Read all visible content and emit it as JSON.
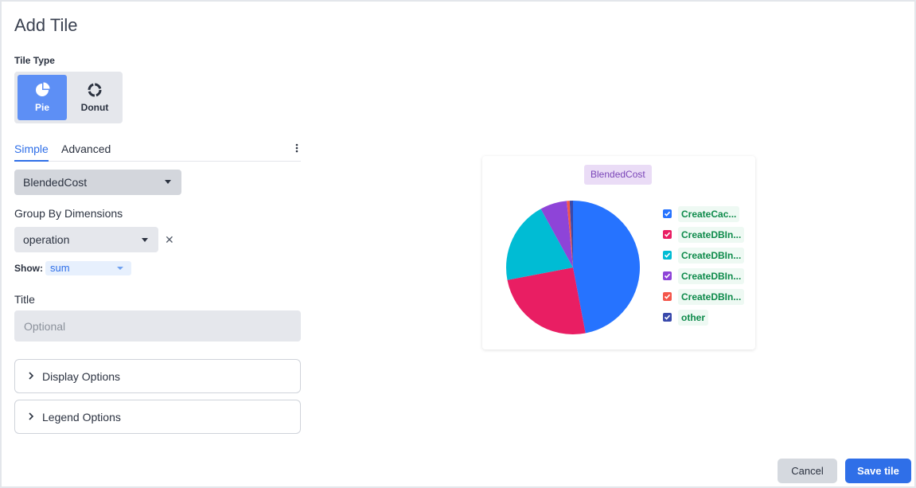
{
  "dialog": {
    "title": "Add Tile"
  },
  "tile_type": {
    "label": "Tile Type",
    "options": [
      {
        "label": "Pie",
        "icon": "pie-chart-icon",
        "selected": true
      },
      {
        "label": "Donut",
        "icon": "donut-chart-icon",
        "selected": false
      }
    ]
  },
  "tabs": [
    {
      "label": "Simple",
      "active": true
    },
    {
      "label": "Advanced",
      "active": false
    }
  ],
  "metric": {
    "value": "BlendedCost"
  },
  "group_by": {
    "label": "Group By Dimensions",
    "value": "operation"
  },
  "show": {
    "label": "Show:",
    "value": "sum"
  },
  "title_field": {
    "label": "Title",
    "placeholder": "Optional",
    "value": ""
  },
  "sections": [
    {
      "label": "Display Options"
    },
    {
      "label": "Legend Options"
    }
  ],
  "buttons": {
    "cancel": "Cancel",
    "save": "Save tile"
  },
  "colors": {
    "accent": "#2f6fe8",
    "active_tile": "#5d8ff5"
  },
  "chart_data": {
    "type": "pie",
    "title": "BlendedCost",
    "legend_position": "right",
    "slices": [
      {
        "label": "CreateCac...",
        "value": 47,
        "color": "#2673ff",
        "checked": true
      },
      {
        "label": "CreateDBIn...",
        "value": 25,
        "color": "#e91e63",
        "checked": true
      },
      {
        "label": "CreateDBIn...",
        "value": 20,
        "color": "#00bcd4",
        "checked": true
      },
      {
        "label": "CreateDBIn...",
        "value": 6.5,
        "color": "#8e44d8",
        "checked": true
      },
      {
        "label": "CreateDBIn...",
        "value": 0.7,
        "color": "#f4564b",
        "checked": true
      },
      {
        "label": "other",
        "value": 0.8,
        "color": "#3949ab",
        "checked": true
      }
    ]
  }
}
